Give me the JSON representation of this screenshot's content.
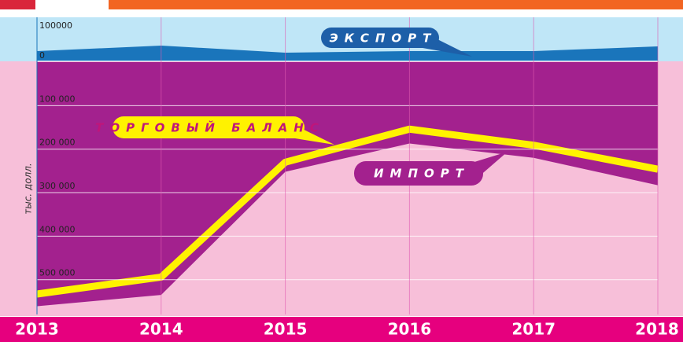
{
  "chart_data": [
    {
      "type": "area",
      "ylim": [
        0,
        100000
      ],
      "yticks": [
        0,
        100000
      ],
      "series": [
        {
          "name": "ЭКСПОРТ",
          "color": "#1a75bb",
          "values": [
            24000,
            38000,
            20000,
            24000,
            24000,
            36000
          ]
        }
      ]
    },
    {
      "type": "area-line",
      "y_inverted": true,
      "y_label": "тыс. долл.",
      "categories": [
        "2013",
        "2014",
        "2015",
        "2016",
        "2017",
        "2018"
      ],
      "ylim": [
        0,
        580000
      ],
      "yticks": [
        {
          "value": 100000,
          "label": "100 000"
        },
        {
          "value": 200000,
          "label": "200 000"
        },
        {
          "value": 300000,
          "label": "300 000"
        },
        {
          "value": 400000,
          "label": "400 000"
        },
        {
          "value": 500000,
          "label": "500 000"
        }
      ],
      "grid": true,
      "series": [
        {
          "name": "ИМПОРТ",
          "type": "area",
          "color": "#a3218e",
          "values": [
            561000,
            535000,
            252000,
            187000,
            220000,
            283000
          ]
        },
        {
          "name": "ТОРГОВЫЙ БАЛАНС",
          "type": "line",
          "color": "#fff200",
          "values": [
            533000,
            494000,
            230000,
            154000,
            191000,
            246000
          ]
        }
      ]
    }
  ]
}
